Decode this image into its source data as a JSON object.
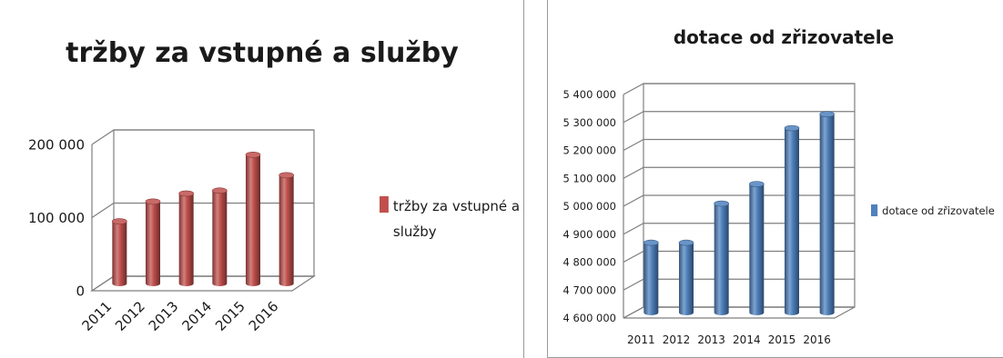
{
  "chart_data": [
    {
      "type": "bar",
      "title": "tržby za vstupné a služby",
      "categories": [
        "2011",
        "2012",
        "2013",
        "2014",
        "2015",
        "2016"
      ],
      "series": [
        {
          "name": "tržby za vstupné a služby",
          "values": [
            85000,
            112000,
            123000,
            127000,
            176000,
            148000
          ],
          "color": "#c0504d"
        }
      ],
      "yticks": [
        0,
        100000,
        200000
      ],
      "ytick_labels": [
        "0",
        "100 000",
        "200 000"
      ],
      "ylim": [
        0,
        200000
      ],
      "legend": {
        "position": "right",
        "lines": [
          "tržby za vstupné a",
          "služby"
        ]
      },
      "grid": true
    },
    {
      "type": "bar",
      "title": "dotace od zřizovatele",
      "categories": [
        "2011",
        "2012",
        "2013",
        "2014",
        "2015",
        "2016"
      ],
      "series": [
        {
          "name": "dotace od zřizovatele",
          "values": [
            4850000,
            4850000,
            4990000,
            5060000,
            5260000,
            5310000
          ],
          "color": "#4f81bd"
        }
      ],
      "yticks": [
        4600000,
        4700000,
        4800000,
        4900000,
        5000000,
        5100000,
        5200000,
        5300000,
        5400000
      ],
      "ytick_labels": [
        "4 600 000",
        "4 700 000",
        "4 800 000",
        "4 900 000",
        "5 000 000",
        "5 100 000",
        "5 200 000",
        "5 300 000",
        "5 400 000"
      ],
      "ylim": [
        4600000,
        5400000
      ],
      "legend": {
        "position": "right",
        "lines": [
          "dotace od zřizovatele"
        ]
      },
      "grid": true
    }
  ]
}
